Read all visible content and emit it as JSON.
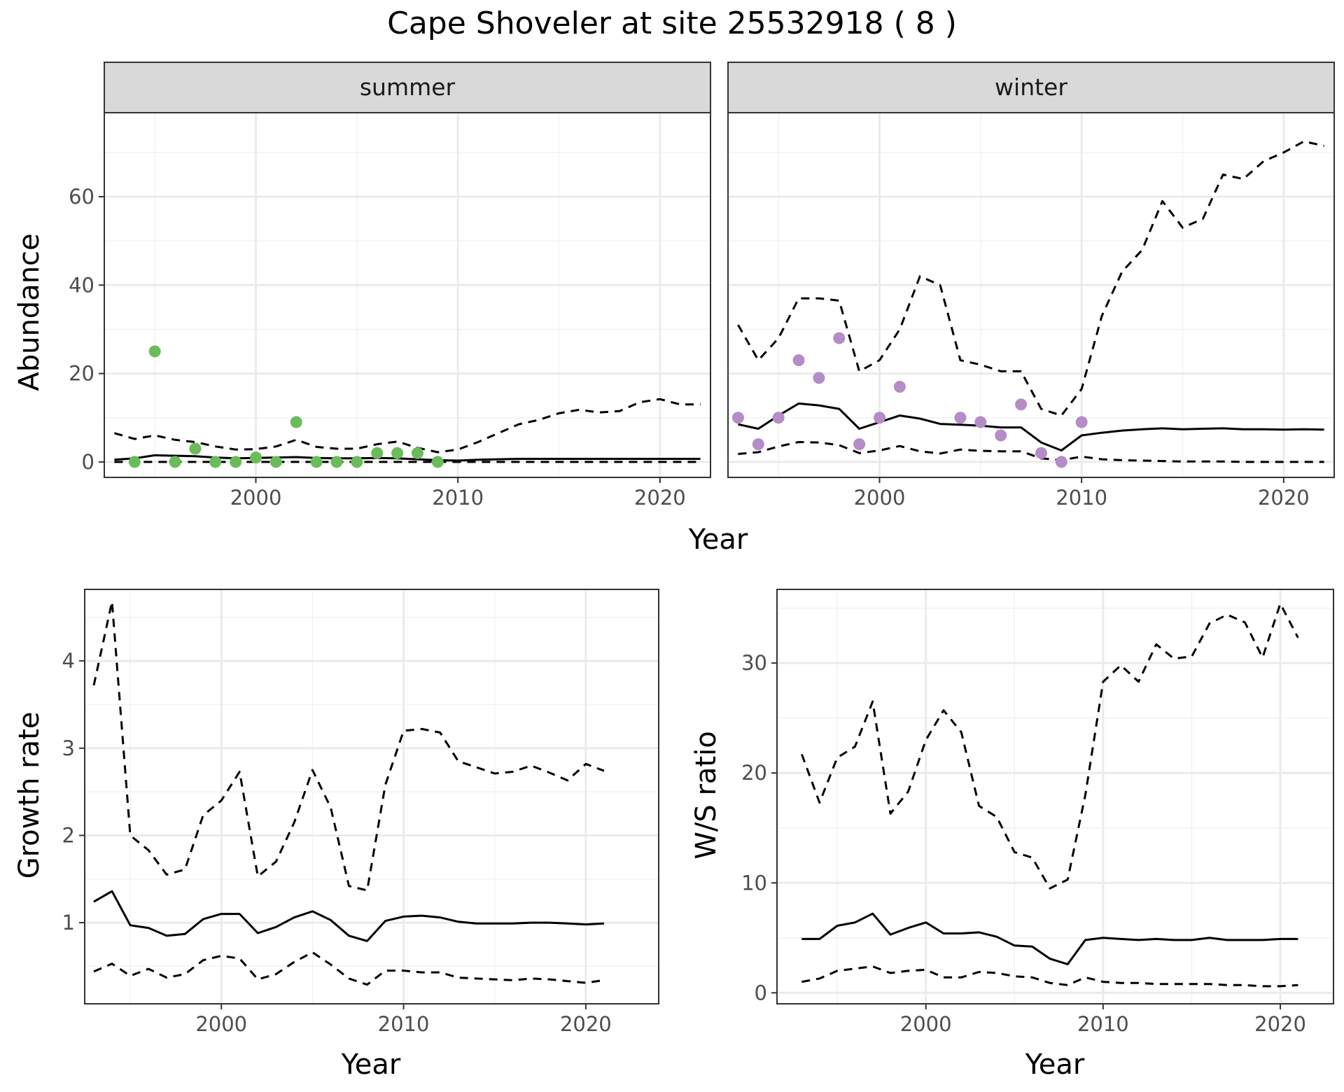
{
  "title": "Cape Shoveler at site 25532918 ( 8 )",
  "colors": {
    "summer_points": "#6abc5a",
    "winter_points": "#b48cc8",
    "line": "#000000",
    "strip_fill": "#d9d9d9",
    "grid": "#ebebeb"
  },
  "top_x_label": "Year",
  "chart_data": [
    {
      "type": "line",
      "panel": "summer",
      "ylabel": "Abundance",
      "xlim": [
        1992.5,
        2022.5
      ],
      "ylim": [
        -3.5,
        79
      ],
      "xticks": [
        2000,
        2010,
        2020
      ],
      "yticks": [
        0,
        20,
        40,
        60
      ],
      "points": {
        "x": [
          1994,
          1995,
          1996,
          1997,
          1998,
          1999,
          2000,
          2001,
          2002,
          2003,
          2004,
          2005,
          2006,
          2007,
          2008,
          2009
        ],
        "y": [
          0,
          25,
          0,
          3,
          0,
          0,
          1,
          0,
          9,
          0,
          0,
          0,
          2,
          2,
          2,
          0
        ]
      },
      "series": [
        {
          "style": "solid",
          "x": [
            1993,
            1994,
            1995,
            1996,
            1997,
            1998,
            1999,
            2000,
            2001,
            2002,
            2003,
            2004,
            2005,
            2006,
            2007,
            2008,
            2009,
            2010,
            2011,
            2012,
            2013,
            2014,
            2015,
            2016,
            2017,
            2018,
            2019,
            2020,
            2021,
            2022
          ],
          "y": [
            0.5,
            0.8,
            1.5,
            1.4,
            1.3,
            1.0,
            0.8,
            0.9,
            1.0,
            1.1,
            0.9,
            0.8,
            0.8,
            0.9,
            0.8,
            0.6,
            0.4,
            0.3,
            0.5,
            0.6,
            0.7,
            0.7,
            0.7,
            0.7,
            0.7,
            0.7,
            0.7,
            0.7,
            0.7,
            0.7
          ]
        },
        {
          "style": "dashed",
          "x": [
            1993,
            1994,
            1995,
            1996,
            1997,
            1998,
            1999,
            2000,
            2001,
            2002,
            2003,
            2004,
            2005,
            2006,
            2007,
            2008,
            2009,
            2010,
            2011,
            2012,
            2013,
            2014,
            2015,
            2016,
            2017,
            2018,
            2019,
            2020,
            2021,
            2022
          ],
          "y": [
            6.5,
            5.2,
            6.0,
            5.0,
            4.5,
            3.5,
            2.8,
            2.9,
            3.5,
            5.0,
            3.4,
            3.0,
            3.0,
            4.0,
            4.6,
            3.2,
            2.2,
            2.8,
            4.5,
            6.5,
            8.5,
            9.5,
            11.0,
            11.8,
            11.2,
            11.5,
            13.5,
            14.2,
            13.0,
            13.0
          ]
        },
        {
          "style": "dashed",
          "x": [
            1993,
            1995,
            2000,
            2005,
            2010,
            2015,
            2020,
            2022
          ],
          "y": [
            0,
            0,
            0,
            0,
            0,
            0,
            0,
            0
          ]
        }
      ]
    },
    {
      "type": "line",
      "panel": "winter",
      "ylabel": "Abundance",
      "xlim": [
        1992.5,
        2022.5
      ],
      "ylim": [
        -3.5,
        79
      ],
      "xticks": [
        2000,
        2010,
        2020
      ],
      "yticks": [
        0,
        20,
        40,
        60
      ],
      "points": {
        "x": [
          1993,
          1994,
          1995,
          1996,
          1997,
          1998,
          1999,
          2000,
          2001,
          2004,
          2005,
          2006,
          2007,
          2008,
          2009,
          2010
        ],
        "y": [
          10,
          4,
          10,
          23,
          19,
          28,
          4,
          10,
          17,
          10,
          9,
          6,
          13,
          2,
          0,
          9
        ]
      },
      "series": [
        {
          "style": "solid",
          "x": [
            1993,
            1994,
            1995,
            1996,
            1997,
            1998,
            1999,
            2000,
            2001,
            2002,
            2003,
            2004,
            2005,
            2006,
            2007,
            2008,
            2009,
            2010,
            2011,
            2012,
            2013,
            2014,
            2015,
            2016,
            2017,
            2018,
            2019,
            2020,
            2021,
            2022
          ],
          "y": [
            8.5,
            7.5,
            10.5,
            13.2,
            12.8,
            12.0,
            7.5,
            9.0,
            10.5,
            9.8,
            8.6,
            8.4,
            8.2,
            7.8,
            7.8,
            4.4,
            2.6,
            6.0,
            6.6,
            7.1,
            7.4,
            7.6,
            7.4,
            7.5,
            7.6,
            7.4,
            7.4,
            7.3,
            7.4,
            7.3
          ]
        },
        {
          "style": "dashed",
          "x": [
            1993,
            1994,
            1995,
            1996,
            1997,
            1998,
            1999,
            2000,
            2001,
            2002,
            2003,
            2004,
            2005,
            2006,
            2007,
            2008,
            2009,
            2010,
            2011,
            2012,
            2013,
            2014,
            2015,
            2016,
            2017,
            2018,
            2019,
            2020,
            2021,
            2022
          ],
          "y": [
            31,
            23,
            28,
            37,
            37,
            36.5,
            20.5,
            23,
            30,
            42,
            40,
            23,
            22,
            20.5,
            20.5,
            12,
            10.5,
            16.5,
            33,
            43,
            48,
            59,
            53,
            55,
            65,
            64,
            68,
            70,
            72.5,
            71.5
          ]
        },
        {
          "style": "dashed",
          "x": [
            1993,
            1994,
            1995,
            1996,
            1997,
            1998,
            1999,
            2000,
            2001,
            2002,
            2003,
            2004,
            2005,
            2006,
            2007,
            2008,
            2009,
            2010,
            2011,
            2012,
            2013,
            2014,
            2015,
            2016,
            2017,
            2018,
            2019,
            2020,
            2021,
            2022
          ],
          "y": [
            1.8,
            2.2,
            3.5,
            4.5,
            4.4,
            3.8,
            2.0,
            2.6,
            3.6,
            2.4,
            1.9,
            2.8,
            2.5,
            2.4,
            2.4,
            0.8,
            0.4,
            1.2,
            0.6,
            0.4,
            0.3,
            0.2,
            0.1,
            0.1,
            0.1,
            0.0,
            0.0,
            0.0,
            0.0,
            0.0
          ]
        }
      ]
    },
    {
      "type": "line",
      "panel": "growth",
      "xlabel": "Year",
      "ylabel": "Growth rate",
      "xlim": [
        1992.5,
        2024
      ],
      "ylim": [
        0.07,
        4.82
      ],
      "xticks": [
        2000,
        2010,
        2020
      ],
      "yticks": [
        1,
        2,
        3,
        4
      ],
      "series": [
        {
          "style": "solid",
          "x": [
            1993,
            1994,
            1995,
            1996,
            1997,
            1998,
            1999,
            2000,
            2001,
            2002,
            2003,
            2004,
            2005,
            2006,
            2007,
            2008,
            2009,
            2010,
            2011,
            2012,
            2013,
            2014,
            2015,
            2016,
            2017,
            2018,
            2019,
            2020,
            2021
          ],
          "y": [
            1.24,
            1.36,
            0.97,
            0.94,
            0.85,
            0.87,
            1.04,
            1.1,
            1.1,
            0.88,
            0.95,
            1.06,
            1.13,
            1.03,
            0.85,
            0.79,
            1.02,
            1.07,
            1.08,
            1.06,
            1.01,
            0.99,
            0.99,
            0.99,
            1.0,
            1.0,
            0.99,
            0.98,
            0.99
          ]
        },
        {
          "style": "dashed",
          "x": [
            1993,
            1994,
            1995,
            1996,
            1997,
            1998,
            1999,
            2000,
            2001,
            2002,
            2003,
            2004,
            2005,
            2006,
            2007,
            2008,
            2009,
            2010,
            2011,
            2012,
            2013,
            2014,
            2015,
            2016,
            2017,
            2018,
            2019,
            2020,
            2021
          ],
          "y": [
            3.72,
            4.68,
            2.0,
            1.83,
            1.55,
            1.61,
            2.23,
            2.4,
            2.73,
            1.53,
            1.7,
            2.15,
            2.75,
            2.32,
            1.42,
            1.37,
            2.58,
            3.2,
            3.22,
            3.18,
            2.85,
            2.78,
            2.71,
            2.73,
            2.8,
            2.72,
            2.63,
            2.82,
            2.74
          ]
        },
        {
          "style": "dashed",
          "x": [
            1993,
            1994,
            1995,
            1996,
            1997,
            1998,
            1999,
            2000,
            2001,
            2002,
            2003,
            2004,
            2005,
            2006,
            2007,
            2008,
            2009,
            2010,
            2011,
            2012,
            2013,
            2014,
            2015,
            2016,
            2017,
            2018,
            2019,
            2020,
            2021
          ],
          "y": [
            0.44,
            0.53,
            0.39,
            0.47,
            0.37,
            0.41,
            0.57,
            0.62,
            0.59,
            0.35,
            0.41,
            0.55,
            0.66,
            0.52,
            0.36,
            0.29,
            0.45,
            0.45,
            0.43,
            0.43,
            0.37,
            0.36,
            0.35,
            0.34,
            0.36,
            0.35,
            0.33,
            0.31,
            0.34
          ]
        }
      ]
    },
    {
      "type": "line",
      "panel": "ratio",
      "xlabel": "Year",
      "ylabel": "W/S ratio",
      "xlim": [
        1991.6,
        2023
      ],
      "ylim": [
        -1,
        36.7
      ],
      "xticks": [
        2000,
        2010,
        2020
      ],
      "yticks": [
        0,
        10,
        20,
        30
      ],
      "series": [
        {
          "style": "solid",
          "x": [
            1993,
            1994,
            1995,
            1996,
            1997,
            1998,
            1999,
            2000,
            2001,
            2002,
            2003,
            2004,
            2005,
            2006,
            2007,
            2008,
            2009,
            2010,
            2011,
            2012,
            2013,
            2014,
            2015,
            2016,
            2017,
            2018,
            2019,
            2020,
            2021
          ],
          "y": [
            4.9,
            4.9,
            6.1,
            6.4,
            7.2,
            5.3,
            5.9,
            6.4,
            5.4,
            5.4,
            5.5,
            5.1,
            4.3,
            4.2,
            3.1,
            2.6,
            4.8,
            5.0,
            4.9,
            4.8,
            4.9,
            4.8,
            4.8,
            5.0,
            4.8,
            4.8,
            4.8,
            4.9,
            4.9
          ]
        },
        {
          "style": "dashed",
          "x": [
            1993,
            1994,
            1995,
            1996,
            1997,
            1998,
            1999,
            2000,
            2001,
            2002,
            2003,
            2004,
            2005,
            2006,
            2007,
            2008,
            2009,
            2010,
            2011,
            2012,
            2013,
            2014,
            2015,
            2016,
            2017,
            2018,
            2019,
            2020,
            2021
          ],
          "y": [
            21.7,
            17.3,
            21.4,
            22.4,
            26.5,
            16.3,
            18.3,
            23.0,
            25.7,
            23.7,
            17.0,
            16.0,
            12.8,
            12.3,
            9.5,
            10.3,
            18.0,
            28.3,
            29.8,
            28.3,
            31.7,
            30.4,
            30.6,
            33.6,
            34.4,
            33.7,
            30.5,
            35.4,
            32.3
          ]
        },
        {
          "style": "dashed",
          "x": [
            1993,
            1994,
            1995,
            1996,
            1997,
            1998,
            1999,
            2000,
            2001,
            2002,
            2003,
            2004,
            2005,
            2006,
            2007,
            2008,
            2009,
            2010,
            2011,
            2012,
            2013,
            2014,
            2015,
            2016,
            2017,
            2018,
            2019,
            2020,
            2021
          ],
          "y": [
            1.0,
            1.3,
            2.0,
            2.2,
            2.4,
            1.8,
            2.0,
            2.1,
            1.4,
            1.4,
            1.9,
            1.8,
            1.5,
            1.4,
            0.9,
            0.7,
            1.4,
            1.0,
            0.9,
            0.9,
            0.8,
            0.8,
            0.8,
            0.8,
            0.7,
            0.7,
            0.6,
            0.6,
            0.7
          ]
        }
      ]
    }
  ],
  "strips": {
    "summer": "summer",
    "winter": "winter"
  }
}
